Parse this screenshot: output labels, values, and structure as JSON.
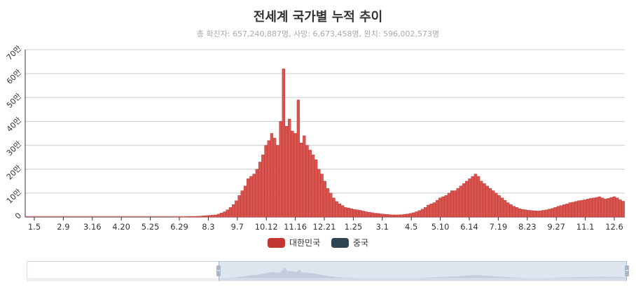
{
  "chart_data": {
    "type": "bar",
    "title": "전세계 국가별 누적 추이",
    "subtitle": "총 확진자: 657,240,887명, 사망: 6,673,458명, 완치: 596,002,573명",
    "x_tick_labels": [
      "1.5",
      "2.9",
      "3.16",
      "4.20",
      "5.25",
      "6.29",
      "8.3",
      "9.7",
      "10.12",
      "11.16",
      "12.21",
      "1.25",
      "3.1",
      "4.5",
      "5.10",
      "6.14",
      "7.19",
      "8.23",
      "9.27",
      "11.1",
      "12.6"
    ],
    "y_ticks": [
      "0",
      "10만",
      "20만",
      "30만",
      "40만",
      "50만",
      "60만",
      "70만"
    ],
    "ylim": [
      0,
      700000
    ],
    "grid": true,
    "legend_position": "bottom",
    "series": [
      {
        "name": "대한민국",
        "color": "#c23531",
        "values": [
          0,
          0,
          0,
          0,
          0,
          0,
          0,
          0,
          0,
          0,
          0,
          0,
          0,
          0,
          0,
          0,
          0,
          0,
          0,
          0,
          0,
          0,
          0,
          0,
          0,
          0,
          0,
          0,
          0,
          0,
          0,
          0,
          0,
          0,
          0,
          0,
          0,
          0,
          0,
          0,
          0,
          0,
          0,
          0,
          0,
          0,
          0,
          0,
          0,
          0,
          500,
          500,
          1000,
          1000,
          1500,
          2000,
          2000,
          2500,
          3000,
          4000,
          5000,
          6000,
          7000,
          8000,
          9000,
          12000,
          17000,
          22000,
          30000,
          40000,
          52000,
          68000,
          90000,
          110000,
          130000,
          160000,
          170000,
          180000,
          200000,
          230000,
          260000,
          300000,
          320000,
          350000,
          330000,
          300000,
          400000,
          620000,
          380000,
          410000,
          360000,
          350000,
          490000,
          310000,
          340000,
          300000,
          280000,
          260000,
          240000,
          200000,
          180000,
          150000,
          120000,
          100000,
          80000,
          65000,
          55000,
          48000,
          40000,
          38000,
          35000,
          32000,
          30000,
          28000,
          25000,
          22000,
          20000,
          18000,
          16000,
          15000,
          13000,
          12000,
          11000,
          10000,
          9000,
          9000,
          9000,
          10000,
          11000,
          13000,
          15000,
          18000,
          22000,
          27000,
          33000,
          40000,
          50000,
          55000,
          60000,
          70000,
          80000,
          85000,
          90000,
          100000,
          110000,
          110000,
          120000,
          130000,
          140000,
          150000,
          160000,
          170000,
          180000,
          170000,
          150000,
          140000,
          130000,
          120000,
          110000,
          100000,
          90000,
          80000,
          70000,
          60000,
          52000,
          45000,
          40000,
          35000,
          32000,
          30000,
          28000,
          27000,
          26000,
          25000,
          26000,
          28000,
          30000,
          33000,
          36000,
          40000,
          45000,
          48000,
          52000,
          55000,
          60000,
          62000,
          65000,
          68000,
          70000,
          72000,
          75000,
          78000,
          80000,
          82000,
          85000,
          80000,
          75000,
          78000,
          82000,
          85000,
          80000,
          72000,
          66000
        ]
      },
      {
        "name": "중국",
        "color": "#2f4554",
        "values": []
      }
    ]
  },
  "legend": {
    "items": [
      {
        "name": "대한민국",
        "color": "#c23531"
      },
      {
        "name": "중국",
        "color": "#2f4554"
      }
    ]
  }
}
